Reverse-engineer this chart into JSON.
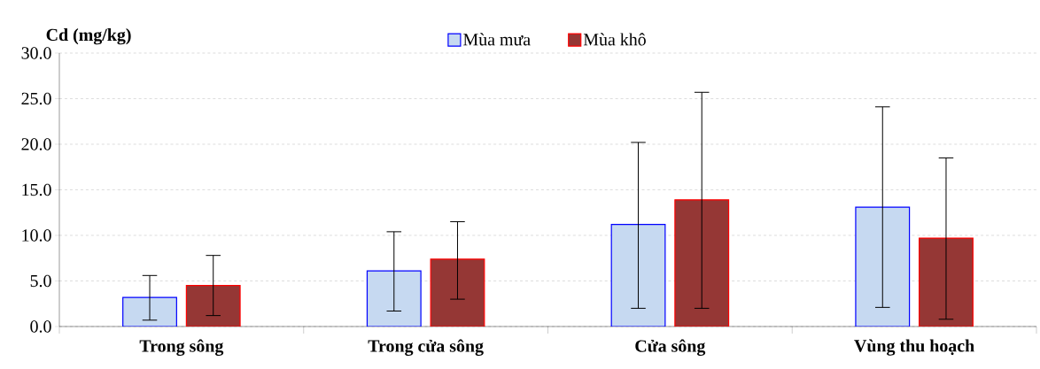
{
  "chart_data": {
    "type": "bar",
    "ylabel": "Cd (mg/kg)",
    "categories": [
      "Trong sông",
      "Trong cửa sông",
      "Cửa sông",
      "Vùng thu hoạch"
    ],
    "series": [
      {
        "name": "Mùa mưa",
        "color": "#c6d9f1",
        "values": [
          3.2,
          6.1,
          11.2,
          13.1
        ],
        "errors": [
          [
            0.7,
            5.6
          ],
          [
            1.7,
            10.4
          ],
          [
            2.0,
            20.2
          ],
          [
            2.1,
            24.1
          ]
        ]
      },
      {
        "name": "Mùa khô",
        "color": "#953735",
        "values": [
          4.5,
          7.4,
          13.9,
          9.7
        ],
        "errors": [
          [
            1.2,
            7.8
          ],
          [
            3.0,
            11.5
          ],
          [
            2.0,
            25.7
          ],
          [
            0.8,
            18.5
          ]
        ]
      }
    ],
    "ylim": [
      0,
      30
    ],
    "yticks": [
      {
        "value": 0,
        "label": "0.0"
      },
      {
        "value": 5,
        "label": "5.0"
      },
      {
        "value": 10,
        "label": "10.0"
      },
      {
        "value": 15,
        "label": "15.0"
      },
      {
        "value": 20,
        "label": "20.0"
      },
      {
        "value": 25,
        "label": "25.0"
      },
      {
        "value": 30,
        "label": "30.0"
      }
    ],
    "grid": "y",
    "legend": "top"
  }
}
